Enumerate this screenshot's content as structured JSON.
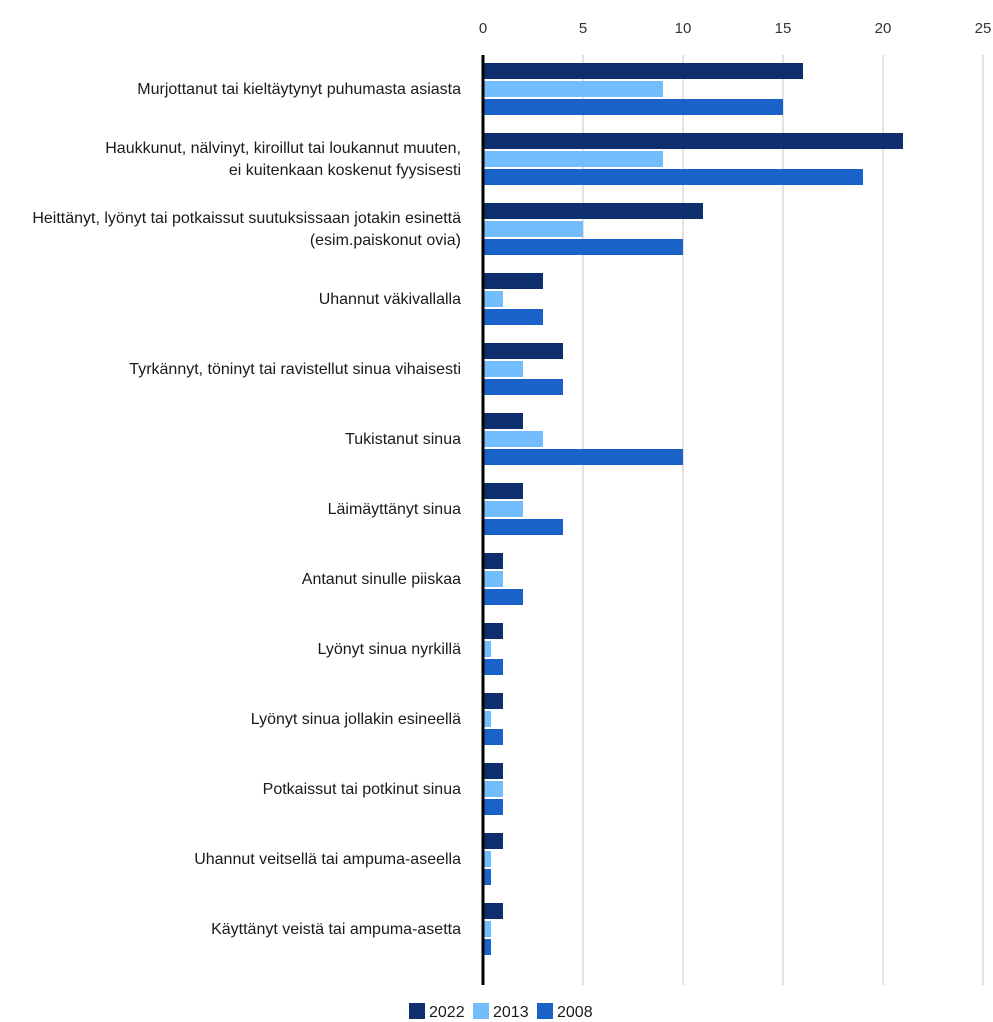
{
  "chart_data": {
    "type": "bar",
    "orientation": "horizontal",
    "title": "",
    "xlabel": "",
    "ylabel": "",
    "xlim": [
      0,
      25
    ],
    "x_ticks": [
      0,
      5,
      10,
      15,
      20,
      25
    ],
    "x_axis_position": "top",
    "grid": true,
    "legend_position": "bottom-center",
    "categories": [
      [
        "Murjottanut tai kieltäytynyt puhumasta asiasta"
      ],
      [
        "Haukkunut, nälvinyt, kiroillut tai loukannut muuten,",
        "ei kuitenkaan koskenut fyysisesti"
      ],
      [
        "Heittänyt, lyönyt tai potkaissut suutuksissaan jotakin esinettä",
        "(esim.paiskonut ovia)"
      ],
      [
        "Uhannut väkivallalla"
      ],
      [
        "Tyrkännyt, töninyt tai ravistellut sinua vihaisesti"
      ],
      [
        "Tukistanut sinua"
      ],
      [
        "Läimäyttänyt sinua"
      ],
      [
        "Antanut sinulle piiskaa"
      ],
      [
        "Lyönyt sinua nyrkillä"
      ],
      [
        "Lyönyt sinua jollakin esineellä"
      ],
      [
        "Potkaissut tai potkinut sinua"
      ],
      [
        "Uhannut veitsellä tai ampuma-aseella"
      ],
      [
        "Käyttänyt veistä tai ampuma-asetta"
      ]
    ],
    "series": [
      {
        "name": "2022",
        "color": "#0d2f6e",
        "values": [
          16,
          21,
          11,
          3,
          4,
          2,
          2,
          1,
          1,
          1,
          1,
          1,
          1
        ]
      },
      {
        "name": "2013",
        "color": "#74bdfc",
        "values": [
          9,
          9,
          5,
          1,
          2,
          3,
          2,
          1,
          0.4,
          0.4,
          1,
          0.4,
          0.4
        ]
      },
      {
        "name": "2008",
        "color": "#1a62c8",
        "values": [
          15,
          19,
          10,
          3,
          4,
          10,
          4,
          2,
          1,
          1,
          1,
          0.4,
          0.4
        ]
      }
    ],
    "gridline_color": "#d9d9d9",
    "axis_color": "#000000"
  }
}
